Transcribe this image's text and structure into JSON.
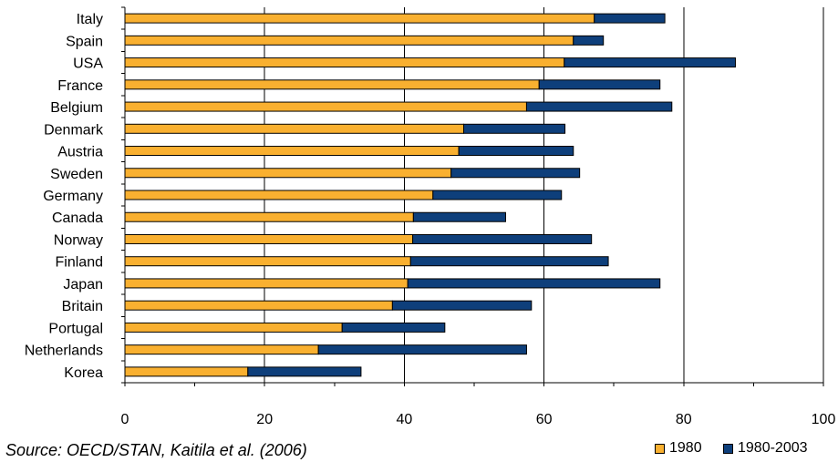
{
  "chart_data": {
    "type": "bar",
    "orientation": "horizontal",
    "stacked": true,
    "categories": [
      "Italy",
      "Spain",
      "USA",
      "France",
      "Belgium",
      "Denmark",
      "Austria",
      "Sweden",
      "Germany",
      "Canada",
      "Norway",
      "Finland",
      "Japan",
      "Britain",
      "Portugal",
      "Netherlands",
      "Korea"
    ],
    "series": [
      {
        "name": "1980",
        "color": "#F9B030",
        "values": [
          67.2,
          64.2,
          62.9,
          59.3,
          57.5,
          48.5,
          47.8,
          46.7,
          44.1,
          41.3,
          41.2,
          40.9,
          40.5,
          38.3,
          31.1,
          27.7,
          17.6
        ]
      },
      {
        "name": "1980-2003",
        "color": "#0E3F7B",
        "values": [
          10.1,
          4.3,
          24.5,
          17.3,
          20.8,
          14.5,
          16.4,
          18.4,
          18.4,
          13.2,
          25.6,
          28.3,
          36.1,
          19.9,
          14.7,
          29.8,
          16.2
        ]
      }
    ],
    "xlim": [
      0,
      100
    ],
    "xticks": [
      0,
      20,
      40,
      60,
      80,
      100
    ],
    "xlabel": "",
    "ylabel": "",
    "title": "",
    "grid": true,
    "legend_position": "bottom-right",
    "source_note": "Source: OECD/STAN, Kaitila et al. (2006)"
  }
}
